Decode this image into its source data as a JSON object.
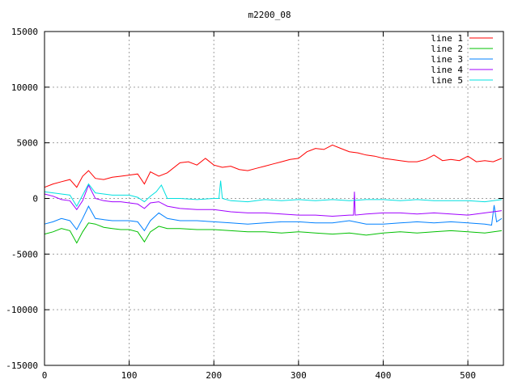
{
  "chart_data": {
    "type": "line",
    "title": "m2200_08",
    "xlabel": "",
    "ylabel": "",
    "xlim": [
      0,
      542
    ],
    "ylim": [
      -15000,
      15000
    ],
    "xticks": [
      0,
      100,
      200,
      300,
      400,
      500
    ],
    "yticks": [
      -15000,
      -10000,
      -5000,
      0,
      5000,
      10000,
      15000
    ],
    "grid": true,
    "legend_position": "top-right",
    "series": [
      {
        "name": "line 1",
        "color": "#ff0000",
        "x": [
          0,
          10,
          20,
          30,
          38,
          45,
          52,
          60,
          70,
          80,
          90,
          100,
          110,
          118,
          125,
          135,
          145,
          160,
          170,
          180,
          190,
          200,
          210,
          220,
          230,
          240,
          250,
          260,
          270,
          280,
          290,
          300,
          310,
          320,
          330,
          340,
          350,
          360,
          370,
          380,
          390,
          400,
          410,
          420,
          430,
          440,
          450,
          460,
          470,
          480,
          490,
          500,
          510,
          520,
          530,
          540
        ],
        "y": [
          1000,
          1300,
          1500,
          1700,
          1000,
          2000,
          2500,
          1800,
          1700,
          1900,
          2000,
          2100,
          2200,
          1300,
          2400,
          2000,
          2300,
          3200,
          3300,
          3000,
          3600,
          3000,
          2800,
          2900,
          2600,
          2500,
          2700,
          2900,
          3100,
          3300,
          3500,
          3600,
          4200,
          4500,
          4400,
          4800,
          4500,
          4200,
          4100,
          3900,
          3800,
          3600,
          3500,
          3400,
          3300,
          3300,
          3500,
          3900,
          3400,
          3500,
          3400,
          3800,
          3300,
          3400,
          3300,
          3600
        ]
      },
      {
        "name": "line 2",
        "color": "#00c000",
        "x": [
          0,
          10,
          20,
          30,
          38,
          45,
          52,
          60,
          70,
          80,
          90,
          100,
          110,
          118,
          125,
          135,
          145,
          160,
          180,
          200,
          220,
          240,
          260,
          280,
          300,
          320,
          340,
          360,
          380,
          400,
          420,
          440,
          460,
          480,
          500,
          520,
          540
        ],
        "y": [
          -3200,
          -3000,
          -2700,
          -2900,
          -4000,
          -3000,
          -2200,
          -2300,
          -2600,
          -2700,
          -2800,
          -2800,
          -3000,
          -3900,
          -3000,
          -2500,
          -2700,
          -2700,
          -2800,
          -2800,
          -2900,
          -3000,
          -3000,
          -3100,
          -3000,
          -3100,
          -3200,
          -3100,
          -3300,
          -3100,
          -3000,
          -3100,
          -3000,
          -2900,
          -3000,
          -3100,
          -2900
        ]
      },
      {
        "name": "line 3",
        "color": "#0080ff",
        "x": [
          0,
          10,
          20,
          30,
          38,
          45,
          52,
          60,
          70,
          80,
          90,
          100,
          110,
          118,
          125,
          135,
          145,
          160,
          180,
          200,
          220,
          240,
          260,
          280,
          300,
          320,
          340,
          360,
          380,
          400,
          420,
          440,
          460,
          480,
          500,
          520,
          528,
          531,
          534,
          540
        ],
        "y": [
          -2300,
          -2100,
          -1800,
          -2000,
          -2800,
          -1800,
          -700,
          -1800,
          -1900,
          -2000,
          -2000,
          -2000,
          -2100,
          -2900,
          -2000,
          -1300,
          -1800,
          -2000,
          -2000,
          -2100,
          -2200,
          -2300,
          -2200,
          -2100,
          -2100,
          -2200,
          -2200,
          -2000,
          -2300,
          -2300,
          -2200,
          -2100,
          -2200,
          -2100,
          -2200,
          -2300,
          -2400,
          -600,
          -2100,
          -1800
        ]
      },
      {
        "name": "line 4",
        "color": "#a000ff",
        "x": [
          0,
          10,
          20,
          30,
          38,
          45,
          52,
          60,
          70,
          80,
          90,
          100,
          110,
          118,
          125,
          135,
          145,
          160,
          180,
          200,
          220,
          240,
          260,
          280,
          300,
          320,
          340,
          360,
          365,
          366,
          367,
          380,
          400,
          420,
          440,
          460,
          480,
          500,
          520,
          540
        ],
        "y": [
          400,
          200,
          -100,
          -200,
          -1000,
          -200,
          1200,
          0,
          -200,
          -300,
          -300,
          -400,
          -500,
          -900,
          -400,
          -300,
          -700,
          -900,
          -1000,
          -1000,
          -1200,
          -1300,
          -1300,
          -1400,
          -1500,
          -1500,
          -1600,
          -1500,
          -1500,
          600,
          -1500,
          -1400,
          -1300,
          -1300,
          -1400,
          -1300,
          -1400,
          -1500,
          -1300,
          -1100
        ]
      },
      {
        "name": "line 5",
        "color": "#00e0e0",
        "x": [
          0,
          10,
          20,
          30,
          38,
          45,
          52,
          60,
          70,
          80,
          90,
          100,
          110,
          118,
          125,
          132,
          138,
          145,
          160,
          180,
          200,
          206,
          208,
          210,
          220,
          240,
          260,
          280,
          300,
          320,
          340,
          360,
          380,
          400,
          420,
          440,
          460,
          480,
          500,
          520,
          540
        ],
        "y": [
          600,
          500,
          400,
          300,
          -700,
          300,
          1300,
          500,
          400,
          300,
          300,
          300,
          100,
          -300,
          200,
          600,
          1200,
          0,
          0,
          -100,
          0,
          0,
          1600,
          0,
          -200,
          -300,
          -100,
          -200,
          -100,
          -200,
          -100,
          -200,
          -100,
          -100,
          -200,
          -100,
          -200,
          -200,
          -200,
          -300,
          -100
        ]
      }
    ]
  }
}
